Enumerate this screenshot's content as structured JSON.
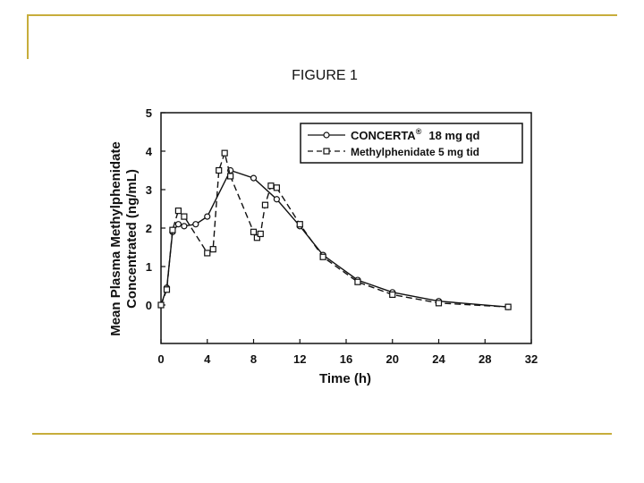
{
  "colors": {
    "rule": "#c7ad3b",
    "ink": "#111111"
  },
  "figure_title": "FIGURE 1",
  "chart_data": {
    "type": "line",
    "title": "FIGURE 1",
    "xlabel": "Time (h)",
    "ylabel_lines": [
      "Mean Plasma Methylphenidate",
      "Concentrated (ng/mL)"
    ],
    "xlim": [
      0,
      32
    ],
    "ylim": [
      -1,
      5
    ],
    "xticks": [
      0,
      4,
      8,
      12,
      16,
      20,
      24,
      28,
      32
    ],
    "yticks": [
      0,
      1,
      2,
      3,
      4,
      5
    ],
    "legend_position": "top-right",
    "series": [
      {
        "name": "CONCERTA",
        "name_sup": "®",
        "dose": "18 mg qd",
        "marker": "circle",
        "dash": "solid",
        "x": [
          0,
          0.5,
          1,
          1.5,
          2,
          3,
          4,
          6,
          8,
          10,
          12,
          14,
          17,
          20,
          24,
          30
        ],
        "y": [
          0,
          0.45,
          1.9,
          2.1,
          2.05,
          2.1,
          2.3,
          3.5,
          3.3,
          2.75,
          2.05,
          1.3,
          0.65,
          0.33,
          0.1,
          -0.05
        ]
      },
      {
        "name": "Methylphenidate 5 mg tid",
        "marker": "square",
        "dash": "dashed",
        "x": [
          0,
          0.5,
          1,
          1.5,
          2,
          4,
          4.5,
          5,
          5.5,
          6,
          8,
          8.3,
          8.6,
          9,
          9.5,
          10,
          12,
          14,
          17,
          20,
          24,
          30
        ],
        "y": [
          0,
          0.4,
          1.95,
          2.45,
          2.3,
          1.35,
          1.45,
          3.5,
          3.95,
          3.35,
          1.9,
          1.75,
          1.85,
          2.6,
          3.1,
          3.05,
          2.1,
          1.25,
          0.6,
          0.27,
          0.05,
          -0.05
        ]
      }
    ]
  }
}
